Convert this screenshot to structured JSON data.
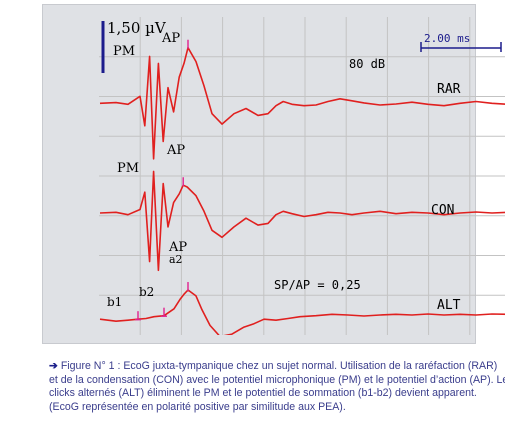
{
  "colors": {
    "trace": "#e0201f",
    "marker": "#e0208f",
    "grid": "#c3c3c3",
    "axis": "#1c1c8c",
    "text": "#000000",
    "caption": "#3a3d8c",
    "frame": "#dfe1e5"
  },
  "chart_data": {
    "type": "line",
    "scale": {
      "voltage_label": "1,50 µV",
      "time_label": "2.00 ms"
    },
    "stimulus_level": "80 dB",
    "ratio_label": "SP/AP =  0,25",
    "grid": true,
    "series": [
      {
        "name": "RAR",
        "peak_labels": [
          "PM",
          "AP"
        ],
        "x": [
          0,
          0.4,
          0.7,
          1.0,
          1.12,
          1.24,
          1.34,
          1.46,
          1.58,
          1.7,
          1.84,
          1.98,
          2.1,
          2.2,
          2.4,
          2.6,
          2.8,
          3.05,
          3.35,
          3.65,
          3.95,
          4.2,
          4.4,
          4.58,
          4.8,
          5.1,
          5.4,
          5.7,
          6.0,
          6.3,
          6.6,
          7.0,
          7.4,
          7.8,
          8.2,
          8.6,
          9.0,
          9.4,
          9.8,
          10.2,
          10.6,
          11.0,
          11.32
        ],
        "y": [
          0.05,
          0.07,
          0.02,
          0.25,
          -0.6,
          1.4,
          -1.55,
          1.2,
          -1.05,
          0.5,
          -0.2,
          0.8,
          1.2,
          1.65,
          1.25,
          0.55,
          -0.25,
          -0.55,
          -0.25,
          -0.1,
          -0.3,
          -0.25,
          -0.02,
          0.1,
          0.02,
          -0.02,
          0.0,
          0.1,
          0.18,
          0.12,
          0.06,
          0.0,
          0.03,
          0.08,
          0.02,
          -0.02,
          0.05,
          0.1,
          0.05,
          0.02,
          0.08,
          0.12,
          0.1
        ]
      },
      {
        "name": "CON",
        "peak_labels": [
          "PM",
          "AP"
        ],
        "x": [
          0,
          0.4,
          0.7,
          1.0,
          1.12,
          1.24,
          1.34,
          1.46,
          1.58,
          1.7,
          1.84,
          1.98,
          2.08,
          2.18,
          2.4,
          2.6,
          2.8,
          3.05,
          3.35,
          3.65,
          3.95,
          4.2,
          4.4,
          4.58,
          4.8,
          5.1,
          5.4,
          5.7,
          6.0,
          6.3,
          6.6,
          7.0,
          7.4,
          7.8,
          8.2,
          8.6,
          9.0,
          9.4,
          9.8,
          10.2,
          10.6,
          11.0,
          11.32
        ],
        "y": [
          0.0,
          0.02,
          -0.05,
          0.1,
          0.6,
          -1.4,
          1.2,
          -1.65,
          0.85,
          -0.4,
          0.3,
          0.55,
          0.8,
          0.75,
          0.5,
          0.05,
          -0.5,
          -0.7,
          -0.4,
          -0.15,
          -0.35,
          -0.3,
          -0.05,
          0.05,
          -0.02,
          -0.1,
          -0.05,
          0.02,
          0.0,
          -0.05,
          0.0,
          0.05,
          -0.02,
          0.02,
          0.0,
          -0.05,
          0.0,
          0.03,
          0.0,
          0.02,
          0.05,
          0.1,
          0.15
        ]
      },
      {
        "name": "ALT",
        "peak_labels": [
          "b1",
          "b2",
          "a2",
          "AP"
        ],
        "x": [
          0,
          0.4,
          0.7,
          0.95,
          1.15,
          1.35,
          1.6,
          1.85,
          2.0,
          2.1,
          2.2,
          2.4,
          2.55,
          2.75,
          3.0,
          3.3,
          3.6,
          3.85,
          4.1,
          4.4,
          4.7,
          5.0,
          5.4,
          5.8,
          6.2,
          6.6,
          7.0,
          7.4,
          7.8,
          8.2,
          8.6,
          9.0,
          9.4,
          9.8,
          10.2,
          10.6,
          11.0,
          11.32
        ],
        "y": [
          -0.12,
          -0.18,
          -0.15,
          -0.12,
          -0.1,
          -0.05,
          -0.02,
          0.18,
          0.45,
          0.6,
          0.72,
          0.55,
          0.15,
          -0.3,
          -0.62,
          -0.55,
          -0.35,
          -0.25,
          -0.12,
          -0.15,
          -0.1,
          -0.05,
          -0.02,
          0.02,
          0.0,
          -0.03,
          0.0,
          0.02,
          0.0,
          0.03,
          0.0,
          0.02,
          0.0,
          0.03,
          0.02,
          0.05,
          0.08,
          0.1
        ]
      }
    ],
    "markers": [
      {
        "series": "RAR",
        "label": "AP",
        "x": 2.2
      },
      {
        "series": "CON",
        "label": "AP",
        "x": 2.08
      },
      {
        "series": "ALT",
        "label": "b1",
        "x": 0.95
      },
      {
        "series": "ALT",
        "label": "b2",
        "x": 1.6
      },
      {
        "series": "ALT",
        "label": "a2",
        "x": 2.2
      }
    ]
  },
  "caption": {
    "arrow": "➔",
    "lead": " Figure N° 1 :      EcoG juxta-tympanique chez un sujet normal. Utilisation de la raréfaction (RAR)",
    "line2": "et de la condensation (CON) avec  le potentiel  microphonique (PM) et le potentiel d’action (AP). Les",
    "line3": "clicks alternés (ALT) éliminent le PM et le  potentiel de sommation (b1-b2) devient apparent.",
    "line4": "(EcoG représentée en polarité positive par similitude aux PEA)."
  }
}
